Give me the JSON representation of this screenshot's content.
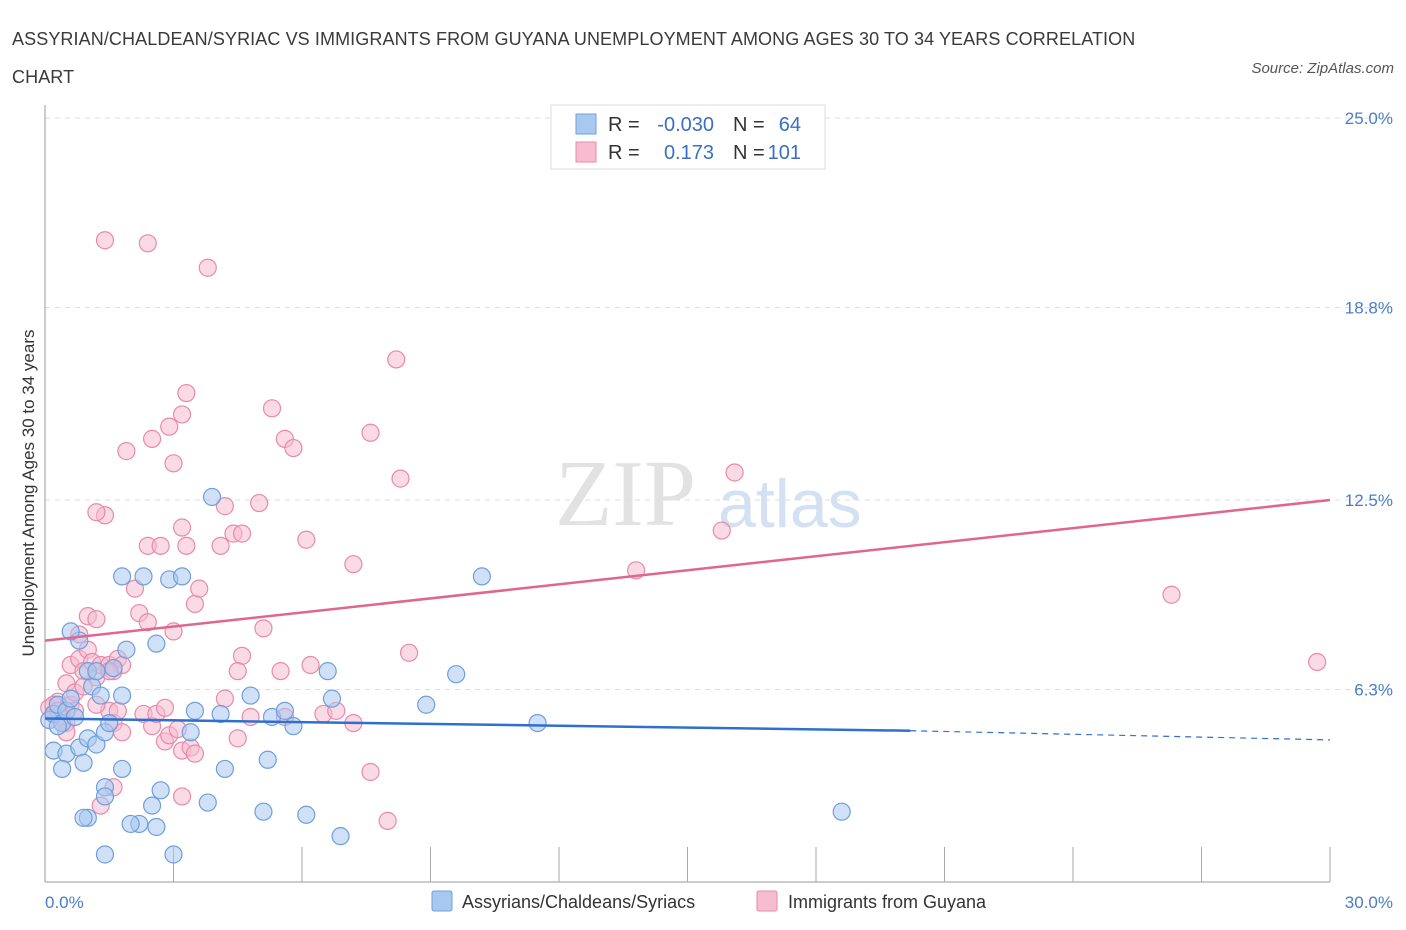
{
  "header": {
    "title": "ASSYRIAN/CHALDEAN/SYRIAC VS IMMIGRANTS FROM GUYANA UNEMPLOYMENT AMONG AGES 30 TO 34 YEARS CORRELATION CHART",
    "source": "Source: ZipAtlas.com"
  },
  "watermark": {
    "part1": "ZIP",
    "part2": "atlas"
  },
  "legend": {
    "r_label": "R =",
    "n_label": "N =",
    "rows": [
      {
        "r": "-0.030",
        "n": "64"
      },
      {
        "r": "0.173",
        "n": "101"
      }
    ]
  },
  "colors": {
    "blue_fill": "#a9c8f0",
    "blue_stroke": "#6e9fdc",
    "blue_line": "#2f6fce",
    "pink_fill": "#f6bcd0",
    "pink_stroke": "#e98aaa",
    "pink_line": "#e06690",
    "tick_text": "#4a7cc9",
    "grid": "#dedede"
  },
  "chart_data": {
    "type": "scatter",
    "title": "ASSYRIAN/CHALDEAN/SYRIAC VS IMMIGRANTS FROM GUYANA UNEMPLOYMENT AMONG AGES 30 TO 34 YEARS CORRELATION CHART",
    "xlabel": "",
    "ylabel": "Unemployment Among Ages 30 to 34 years",
    "xlim": [
      0,
      30
    ],
    "ylim": [
      0,
      25
    ],
    "x_tick_labels": [
      "0.0%",
      "30.0%"
    ],
    "y_ticks": [
      {
        "value": 6.3,
        "label": "6.3%"
      },
      {
        "value": 12.5,
        "label": "12.5%"
      },
      {
        "value": 18.8,
        "label": "18.8%"
      },
      {
        "value": 25.0,
        "label": "25.0%"
      }
    ],
    "series": [
      {
        "name": "Assyrians/Chaldeans/Syriacs",
        "color": "blue",
        "R": -0.03,
        "N": 64,
        "trend": {
          "x0": 0,
          "y0": 5.35,
          "x1": 20.2,
          "y1": 4.95,
          "dash_to_x": 30,
          "dash_to_y": 4.65
        },
        "points": [
          [
            0.1,
            5.3
          ],
          [
            0.2,
            5.5
          ],
          [
            0.3,
            5.8
          ],
          [
            0.4,
            5.2
          ],
          [
            0.5,
            5.6
          ],
          [
            0.6,
            6.0
          ],
          [
            0.7,
            5.4
          ],
          [
            0.2,
            4.3
          ],
          [
            0.5,
            4.2
          ],
          [
            0.8,
            4.4
          ],
          [
            0.4,
            3.7
          ],
          [
            0.9,
            3.9
          ],
          [
            1.0,
            4.7
          ],
          [
            1.2,
            4.5
          ],
          [
            1.4,
            4.9
          ],
          [
            1.5,
            5.2
          ],
          [
            1.1,
            6.4
          ],
          [
            1.3,
            6.1
          ],
          [
            1.8,
            6.1
          ],
          [
            1.6,
            7.0
          ],
          [
            1.9,
            7.6
          ],
          [
            0.8,
            7.9
          ],
          [
            0.6,
            8.2
          ],
          [
            1.0,
            6.9
          ],
          [
            1.2,
            6.9
          ],
          [
            1.8,
            10.0
          ],
          [
            2.3,
            10.0
          ],
          [
            2.9,
            9.9
          ],
          [
            3.2,
            10.0
          ],
          [
            3.9,
            12.6
          ],
          [
            2.6,
            7.8
          ],
          [
            3.5,
            5.6
          ],
          [
            3.4,
            4.9
          ],
          [
            4.1,
            5.5
          ],
          [
            4.8,
            6.1
          ],
          [
            5.3,
            5.4
          ],
          [
            5.2,
            4.0
          ],
          [
            5.6,
            5.6
          ],
          [
            5.8,
            5.1
          ],
          [
            6.6,
            6.9
          ],
          [
            6.7,
            6.0
          ],
          [
            8.9,
            5.8
          ],
          [
            9.6,
            6.8
          ],
          [
            10.2,
            10.0
          ],
          [
            11.5,
            5.2
          ],
          [
            1.8,
            3.7
          ],
          [
            1.4,
            3.1
          ],
          [
            1.4,
            2.8
          ],
          [
            2.5,
            2.5
          ],
          [
            2.7,
            3.0
          ],
          [
            3.8,
            2.6
          ],
          [
            2.2,
            1.9
          ],
          [
            2.6,
            1.8
          ],
          [
            3.0,
            0.9
          ],
          [
            1.4,
            0.9
          ],
          [
            1.0,
            2.1
          ],
          [
            0.9,
            2.1
          ],
          [
            4.2,
            3.7
          ],
          [
            5.1,
            2.3
          ],
          [
            6.1,
            2.2
          ],
          [
            6.9,
            1.5
          ],
          [
            18.6,
            2.3
          ],
          [
            2.0,
            1.9
          ],
          [
            0.3,
            5.1
          ]
        ]
      },
      {
        "name": "Immigrants from Guyana",
        "color": "pink",
        "R": 0.173,
        "N": 101,
        "trend": {
          "x0": 0,
          "y0": 7.9,
          "x1": 30,
          "y1": 12.5
        },
        "points": [
          [
            0.1,
            5.7
          ],
          [
            0.2,
            5.5
          ],
          [
            0.3,
            5.9
          ],
          [
            0.4,
            5.4
          ],
          [
            0.5,
            5.2
          ],
          [
            0.6,
            5.8
          ],
          [
            0.7,
            5.6
          ],
          [
            0.5,
            6.5
          ],
          [
            0.6,
            7.1
          ],
          [
            0.8,
            7.3
          ],
          [
            0.9,
            6.9
          ],
          [
            1.0,
            7.6
          ],
          [
            1.1,
            7.2
          ],
          [
            1.2,
            6.7
          ],
          [
            0.8,
            8.1
          ],
          [
            1.0,
            8.7
          ],
          [
            1.2,
            8.6
          ],
          [
            1.3,
            7.1
          ],
          [
            1.5,
            7.1
          ],
          [
            1.6,
            6.9
          ],
          [
            1.7,
            7.3
          ],
          [
            1.8,
            7.1
          ],
          [
            1.5,
            5.6
          ],
          [
            1.6,
            5.2
          ],
          [
            1.7,
            5.6
          ],
          [
            1.8,
            4.9
          ],
          [
            2.3,
            5.5
          ],
          [
            2.5,
            5.1
          ],
          [
            2.6,
            5.5
          ],
          [
            2.8,
            4.6
          ],
          [
            2.9,
            4.8
          ],
          [
            3.2,
            4.3
          ],
          [
            3.4,
            4.4
          ],
          [
            3.1,
            5.0
          ],
          [
            2.2,
            8.8
          ],
          [
            2.4,
            8.5
          ],
          [
            3.0,
            8.2
          ],
          [
            3.5,
            9.1
          ],
          [
            3.6,
            9.6
          ],
          [
            2.1,
            9.6
          ],
          [
            2.4,
            11.0
          ],
          [
            2.7,
            11.0
          ],
          [
            3.3,
            11.0
          ],
          [
            3.2,
            11.6
          ],
          [
            4.1,
            11.0
          ],
          [
            4.4,
            11.4
          ],
          [
            4.6,
            11.4
          ],
          [
            4.2,
            12.3
          ],
          [
            5.0,
            12.4
          ],
          [
            1.4,
            12.0
          ],
          [
            1.2,
            12.1
          ],
          [
            3.0,
            13.7
          ],
          [
            2.5,
            14.5
          ],
          [
            1.9,
            14.1
          ],
          [
            2.9,
            14.9
          ],
          [
            3.2,
            15.3
          ],
          [
            3.3,
            16.0
          ],
          [
            5.3,
            15.5
          ],
          [
            5.6,
            14.5
          ],
          [
            5.8,
            14.2
          ],
          [
            7.6,
            14.7
          ],
          [
            8.3,
            13.2
          ],
          [
            8.2,
            17.1
          ],
          [
            6.1,
            11.2
          ],
          [
            7.2,
            10.4
          ],
          [
            1.4,
            21.0
          ],
          [
            2.4,
            20.9
          ],
          [
            3.8,
            20.1
          ],
          [
            4.6,
            7.4
          ],
          [
            4.5,
            6.9
          ],
          [
            5.1,
            8.3
          ],
          [
            6.2,
            7.1
          ],
          [
            8.5,
            7.5
          ],
          [
            4.8,
            5.4
          ],
          [
            4.5,
            4.7
          ],
          [
            5.6,
            5.4
          ],
          [
            6.5,
            5.5
          ],
          [
            7.2,
            5.2
          ],
          [
            7.6,
            3.6
          ],
          [
            8.0,
            2.0
          ],
          [
            3.2,
            2.8
          ],
          [
            1.3,
            2.5
          ],
          [
            1.6,
            3.1
          ],
          [
            0.4,
            5.2
          ],
          [
            0.2,
            5.8
          ],
          [
            0.3,
            5.6
          ],
          [
            0.7,
            6.2
          ],
          [
            0.9,
            6.4
          ],
          [
            1.5,
            6.9
          ],
          [
            2.8,
            5.7
          ],
          [
            3.5,
            4.2
          ],
          [
            4.2,
            6.0
          ],
          [
            5.5,
            6.9
          ],
          [
            6.8,
            5.6
          ],
          [
            13.8,
            10.2
          ],
          [
            16.1,
            13.4
          ],
          [
            15.8,
            11.5
          ],
          [
            26.3,
            9.4
          ],
          [
            29.7,
            7.2
          ],
          [
            0.5,
            4.9
          ],
          [
            1.2,
            5.8
          ]
        ]
      }
    ]
  },
  "bottom_legend": {
    "series1": "Assyrians/Chaldeans/Syriacs",
    "series2": "Immigrants from Guyana"
  }
}
